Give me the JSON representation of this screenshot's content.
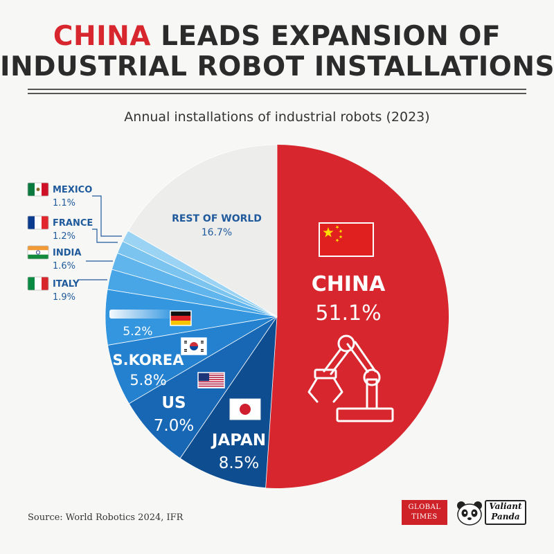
{
  "title": {
    "accent": "CHINA",
    "line1_rest": " LEADS EXPANSION OF",
    "line2": "INDUSTRIAL ROBOT INSTALLATIONS"
  },
  "subtitle": "Annual installations of industrial robots (2023)",
  "source": "Source: World Robotics 2024, IFR",
  "logos": {
    "global_times": [
      "GLOBAL",
      "TIMES"
    ],
    "valiant_panda": [
      "Valiant",
      "Panda"
    ]
  },
  "colors": {
    "china": "#d7262d",
    "rest_of_world": "#ededec",
    "label_dark_blue": "#1f5a9c"
  },
  "chart_data": {
    "type": "pie",
    "title": "Annual installations of industrial robots (2023)",
    "unit": "%",
    "slices": [
      {
        "label": "CHINA",
        "value": 51.1,
        "value_label": "51.1%",
        "color": "#d7262d",
        "flag": "china-flag-icon"
      },
      {
        "label": "JAPAN",
        "value": 8.5,
        "value_label": "8.5%",
        "color": "#0f4d91",
        "flag": "japan-flag-icon"
      },
      {
        "label": "US",
        "value": 7.0,
        "value_label": "7.0%",
        "color": "#1867b5",
        "flag": "us-flag-icon"
      },
      {
        "label": "S.KOREA",
        "value": 5.8,
        "value_label": "5.8%",
        "color": "#2381cf",
        "flag": "south-korea-flag-icon"
      },
      {
        "label": "",
        "value": 5.2,
        "value_label": "5.2%",
        "color": "#3396df",
        "flag": "germany-flag-icon"
      },
      {
        "label": "ITALY",
        "value": 1.9,
        "value_label": "1.9%",
        "color": "#48a6e7",
        "flag": "italy-flag-icon"
      },
      {
        "label": "INDIA",
        "value": 1.6,
        "value_label": "1.6%",
        "color": "#60b5ec",
        "flag": "india-flag-icon"
      },
      {
        "label": "FRANCE",
        "value": 1.2,
        "value_label": "1.2%",
        "color": "#7cc4f0",
        "flag": "france-flag-icon"
      },
      {
        "label": "MEXICO",
        "value": 1.1,
        "value_label": "1.1%",
        "color": "#9ad3f4",
        "flag": "mexico-flag-icon"
      },
      {
        "label": "REST OF WORLD",
        "value": 16.7,
        "value_label": "16.7%",
        "color": "#ededec",
        "flag": ""
      }
    ]
  }
}
